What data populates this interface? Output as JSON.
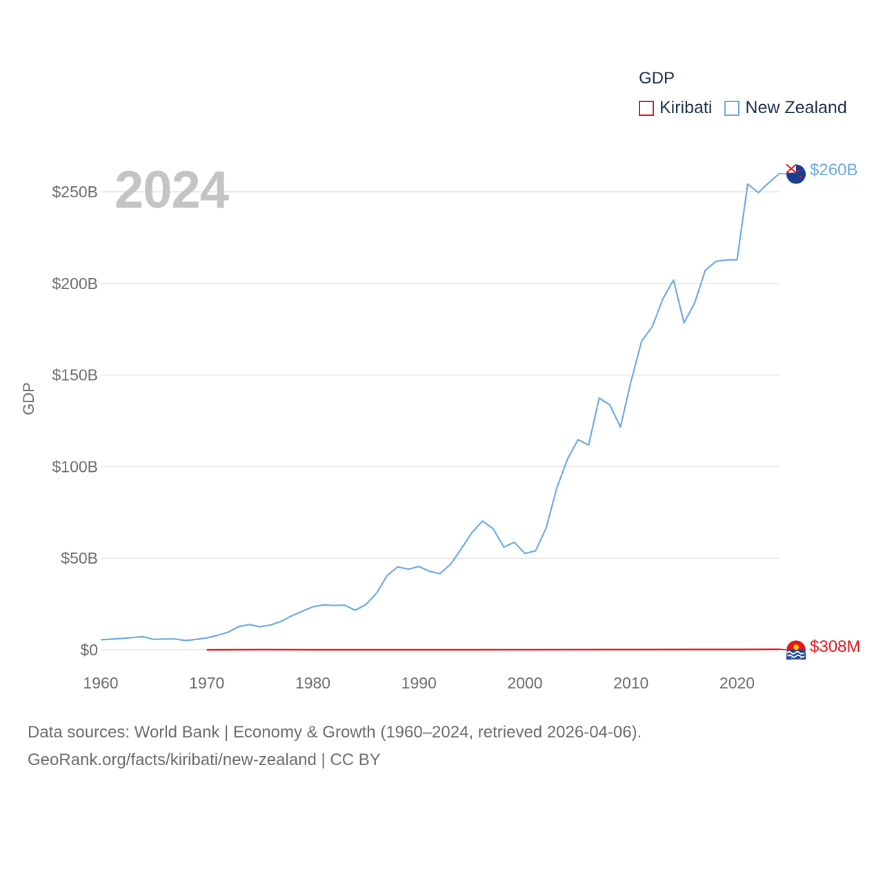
{
  "year_display": "2024",
  "legend": {
    "title": "GDP",
    "items": [
      {
        "label": "Kiribati",
        "color": "#e8131b"
      },
      {
        "label": "New Zealand",
        "color": "#6aaae4"
      }
    ]
  },
  "end_labels": {
    "new_zealand": "$260B",
    "kiribati": "$308M"
  },
  "footer": {
    "line1": "Data sources: World Bank | Economy & Growth (1960–2024, retrieved 2026-04-06).",
    "line2": "GeoRank.org/facts/kiribati/new-zealand | CC BY"
  },
  "chart_data": {
    "type": "line",
    "title": "GDP",
    "xlabel": "",
    "ylabel": "GDP",
    "xlim": [
      1960,
      2024
    ],
    "ylim": [
      0,
      260
    ],
    "y_unit": "billion USD",
    "y_ticks": [
      0,
      50,
      100,
      150,
      200,
      250
    ],
    "y_tick_labels": [
      "$0",
      "$50B",
      "$100B",
      "$150B",
      "$200B",
      "$250B"
    ],
    "x_ticks": [
      1960,
      1970,
      1980,
      1990,
      2000,
      2010,
      2020
    ],
    "x_tick_labels": [
      "1960",
      "1970",
      "1980",
      "1990",
      "2000",
      "2010",
      "2020"
    ],
    "grid": true,
    "legend_position": "top-right",
    "series": [
      {
        "name": "New Zealand",
        "color": "#6aaae4",
        "x": [
          1960,
          1961,
          1962,
          1963,
          1964,
          1965,
          1966,
          1967,
          1968,
          1969,
          1970,
          1971,
          1972,
          1973,
          1974,
          1975,
          1976,
          1977,
          1978,
          1979,
          1980,
          1981,
          1982,
          1983,
          1984,
          1985,
          1986,
          1987,
          1988,
          1989,
          1990,
          1991,
          1992,
          1993,
          1994,
          1995,
          1996,
          1997,
          1998,
          1999,
          2000,
          2001,
          2002,
          2003,
          2004,
          2005,
          2006,
          2007,
          2008,
          2009,
          2010,
          2011,
          2012,
          2013,
          2014,
          2015,
          2016,
          2017,
          2018,
          2019,
          2020,
          2021,
          2022,
          2023,
          2024
        ],
        "values": [
          5.5,
          5.8,
          6.2,
          6.7,
          7.2,
          5.7,
          5.9,
          5.9,
          5.1,
          5.7,
          6.5,
          7.9,
          9.6,
          12.6,
          13.8,
          12.6,
          13.5,
          15.5,
          18.6,
          21.0,
          23.5,
          24.5,
          24.2,
          24.4,
          21.6,
          24.7,
          30.9,
          40.5,
          45.3,
          44.0,
          45.5,
          42.8,
          41.6,
          46.8,
          55.2,
          64.0,
          70.3,
          66.1,
          56.1,
          58.7,
          52.6,
          54.0,
          66.6,
          88.3,
          104.0,
          114.7,
          111.8,
          137.4,
          133.7,
          121.6,
          146.6,
          168.5,
          176.4,
          191.6,
          201.8,
          178.4,
          189.4,
          207.1,
          212.0,
          212.8,
          212.9,
          254.2,
          249.5,
          255.0,
          260.0
        ],
        "end_label": "$260B"
      },
      {
        "name": "Kiribati",
        "color": "#e8131b",
        "x": [
          1970,
          1975,
          1980,
          1985,
          1990,
          1995,
          2000,
          2005,
          2010,
          2015,
          2020,
          2024
        ],
        "values": [
          0.014,
          0.1,
          0.04,
          0.03,
          0.03,
          0.05,
          0.07,
          0.1,
          0.16,
          0.17,
          0.18,
          0.308
        ],
        "end_label": "$308M"
      }
    ]
  }
}
